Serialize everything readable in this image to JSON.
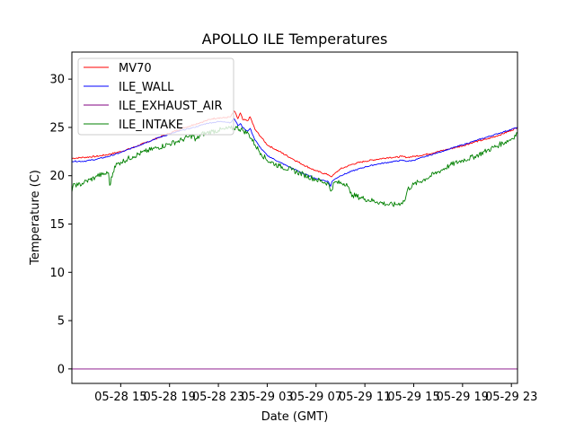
{
  "chart_data": {
    "type": "line",
    "title": "APOLLO ILE Temperatures",
    "xlabel": "Date (GMT)",
    "ylabel": "Temperature (C)",
    "x_unit": "hours since 05-28 11:00 GMT",
    "xlim": [
      0,
      36.5
    ],
    "ylim": [
      -1.5,
      32.8
    ],
    "x_ticks": [
      {
        "value": 4,
        "label": "05-28 15"
      },
      {
        "value": 8,
        "label": "05-28 19"
      },
      {
        "value": 12,
        "label": "05-28 23"
      },
      {
        "value": 16,
        "label": "05-29 03"
      },
      {
        "value": 20,
        "label": "05-29 07"
      },
      {
        "value": 24,
        "label": "05-29 11"
      },
      {
        "value": 28,
        "label": "05-29 15"
      },
      {
        "value": 32,
        "label": "05-29 19"
      },
      {
        "value": 36,
        "label": "05-29 23"
      }
    ],
    "y_ticks": [
      0,
      5,
      10,
      15,
      20,
      25,
      30
    ],
    "legend_position": "top-left",
    "series": [
      {
        "name": "MV70",
        "color": "#ff0000",
        "x": [
          0,
          1,
          2,
          3,
          4,
          5,
          6,
          7,
          8,
          9,
          10,
          10.5,
          11,
          11.5,
          12,
          12.5,
          13,
          13.3,
          13.6,
          13.8,
          14,
          14.4,
          14.6,
          15,
          15.5,
          16,
          17,
          18,
          19,
          20,
          21,
          21.3,
          21.6,
          22,
          23,
          24,
          25,
          26,
          26.5,
          27,
          27.5,
          28,
          29,
          30,
          31,
          32,
          33,
          34,
          35,
          36,
          36.5
        ],
        "y": [
          21.8,
          21.9,
          22.0,
          22.2,
          22.5,
          22.9,
          23.4,
          23.9,
          24.4,
          24.9,
          25.3,
          25.5,
          25.7,
          25.9,
          26.0,
          26.0,
          26.1,
          26.7,
          25.9,
          26.5,
          25.8,
          25.7,
          26.1,
          24.8,
          24.0,
          23.2,
          22.5,
          21.8,
          21.1,
          20.5,
          20.1,
          19.9,
          20.3,
          20.7,
          21.2,
          21.5,
          21.7,
          21.9,
          21.9,
          22.0,
          21.9,
          22.0,
          22.2,
          22.5,
          22.8,
          23.1,
          23.5,
          23.8,
          24.2,
          24.7,
          25.0
        ]
      },
      {
        "name": "ILE_WALL",
        "color": "#0000ff",
        "x": [
          0,
          1,
          2,
          3,
          4,
          5,
          6,
          7,
          8,
          9,
          10,
          10.5,
          11,
          11.5,
          12,
          12.5,
          13,
          13.3,
          13.6,
          13.8,
          14,
          14.4,
          14.6,
          15,
          15.5,
          16,
          17,
          18,
          19,
          20,
          21,
          21.2,
          21.3,
          21.6,
          22,
          23,
          24,
          25,
          26,
          26.5,
          27,
          27.5,
          28,
          29,
          30,
          31,
          32,
          33,
          34,
          35,
          36,
          36.5
        ],
        "y": [
          21.5,
          21.5,
          21.7,
          22.0,
          22.4,
          22.9,
          23.4,
          23.9,
          24.3,
          24.7,
          25.0,
          25.2,
          25.4,
          25.5,
          25.6,
          25.6,
          25.5,
          25.9,
          25.2,
          25.4,
          25.0,
          24.6,
          24.9,
          23.7,
          22.8,
          22.1,
          21.4,
          20.8,
          20.2,
          19.7,
          19.4,
          18.9,
          19.4,
          19.7,
          20.0,
          20.5,
          20.9,
          21.2,
          21.4,
          21.5,
          21.6,
          21.5,
          21.6,
          22.0,
          22.4,
          22.8,
          23.2,
          23.6,
          24.0,
          24.4,
          24.8,
          25.0
        ]
      },
      {
        "name": "ILE_EXHAUST_AIR",
        "color": "#800080",
        "x": [
          0,
          36.5
        ],
        "y": [
          0,
          0
        ]
      },
      {
        "name": "ILE_INTAKE",
        "color": "#008000",
        "x": [
          0,
          0.2,
          0.5,
          1,
          1.5,
          1.9,
          2.0,
          2.5,
          3,
          3.1,
          3.5,
          4,
          5,
          6,
          7,
          8,
          8.5,
          9,
          9.5,
          10,
          10.1,
          10.6,
          11,
          11.5,
          12,
          12.5,
          13,
          13.5,
          14,
          14.5,
          15,
          15.5,
          16,
          17,
          18,
          19,
          20,
          21,
          21.2,
          21.5,
          22.5,
          22.8,
          23,
          24,
          25,
          26,
          26.5,
          27,
          27.3,
          27.5,
          28,
          29,
          30,
          31,
          32,
          33,
          34,
          35,
          36,
          36.5
        ],
        "y": [
          18.3,
          19.2,
          19.0,
          19.3,
          19.6,
          19.8,
          20.0,
          20.1,
          20.3,
          19.0,
          21.0,
          21.4,
          22.0,
          22.5,
          22.9,
          23.3,
          23.5,
          23.7,
          24.0,
          24.2,
          23.6,
          24.3,
          24.4,
          24.6,
          24.7,
          24.8,
          24.9,
          25.0,
          24.7,
          24.3,
          23.2,
          22.3,
          21.6,
          21.0,
          20.6,
          20.1,
          19.6,
          19.2,
          18.4,
          19.3,
          19.2,
          18.2,
          18.0,
          17.6,
          17.3,
          17.0,
          17.0,
          17.2,
          17.5,
          18.6,
          19.1,
          19.7,
          20.4,
          21.1,
          21.6,
          22.0,
          22.6,
          23.2,
          23.8,
          24.4
        ]
      }
    ]
  }
}
